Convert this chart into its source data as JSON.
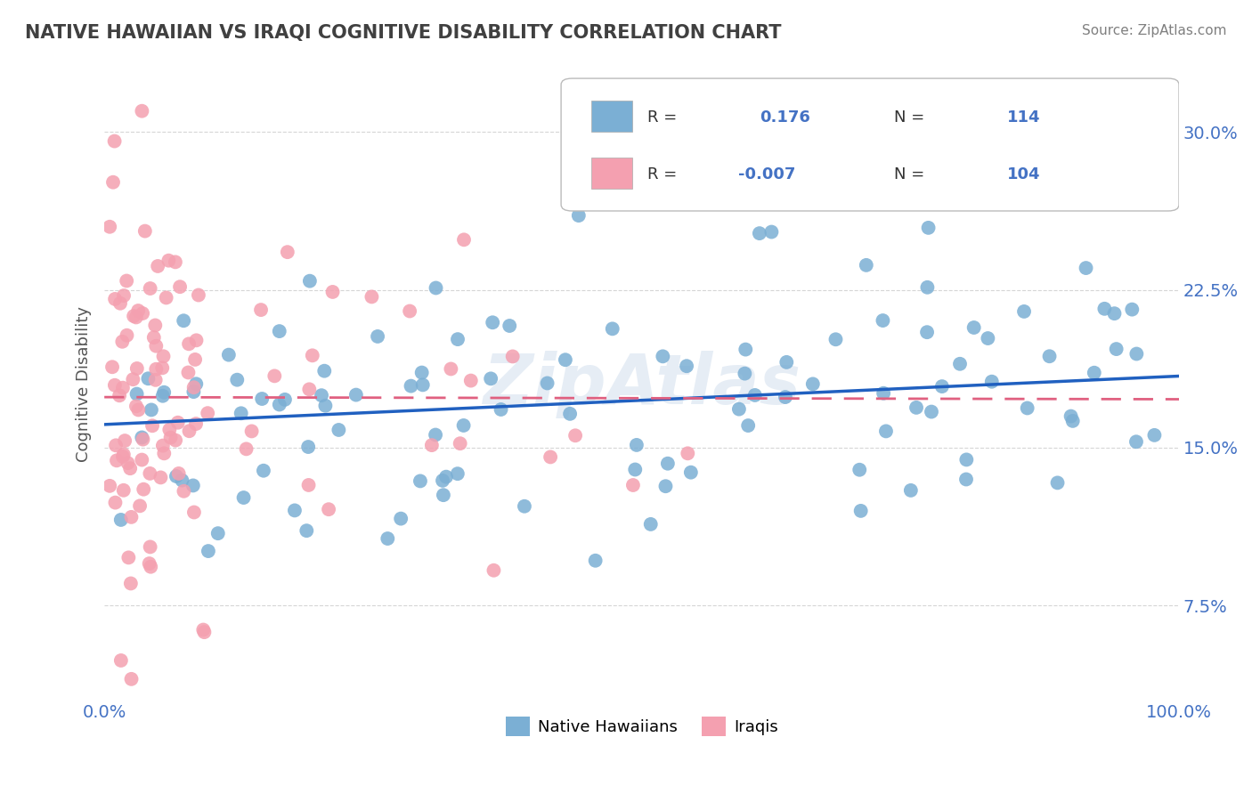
{
  "title": "NATIVE HAWAIIAN VS IRAQI COGNITIVE DISABILITY CORRELATION CHART",
  "source": "Source: ZipAtlas.com",
  "ylabel": "Cognitive Disability",
  "y_ticks": [
    0.075,
    0.15,
    0.225,
    0.3
  ],
  "y_tick_labels": [
    "7.5%",
    "15.0%",
    "22.5%",
    "30.0%"
  ],
  "x_lim": [
    0.0,
    1.0
  ],
  "y_lim": [
    0.03,
    0.33
  ],
  "r1": "0.176",
  "n1": "114",
  "r2": "-0.007",
  "n2": "104",
  "blue_color": "#7BAFD4",
  "pink_color": "#F4A0B0",
  "trend_blue": "#2060C0",
  "trend_pink": "#E06080",
  "background_color": "#FFFFFF",
  "grid_color": "#CCCCCC",
  "title_color": "#404040",
  "axis_label_color": "#4472C4",
  "source_color": "#808080",
  "blue_trend_y_start": 0.161,
  "blue_trend_y_end": 0.184,
  "pink_trend_y_start": 0.174,
  "pink_trend_y_end": 0.173,
  "watermark": "ZipAtlas",
  "footer_label1": "Native Hawaiians",
  "footer_label2": "Iraqis"
}
